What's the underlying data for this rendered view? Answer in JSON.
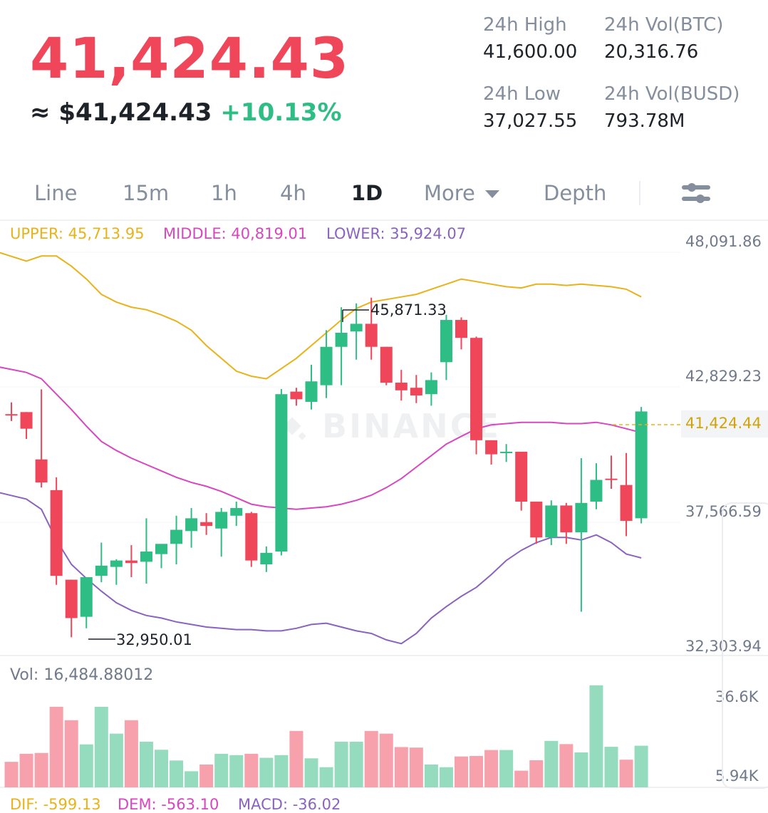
{
  "header": {
    "last_price": "41,424.43",
    "usd_equiv": "≈ $41,424.43",
    "change_pct": "+10.13%"
  },
  "stats": {
    "high_label": "24h High",
    "high_value": "41,600.00",
    "vol_btc_label": "24h Vol(BTC)",
    "vol_btc_value": "20,316.76",
    "low_label": "24h Low",
    "low_value": "37,027.55",
    "vol_busd_label": "24h Vol(BUSD)",
    "vol_busd_value": "793.78M"
  },
  "tabs": {
    "line": "Line",
    "m15": "15m",
    "h1": "1h",
    "h4": "4h",
    "d1": "1D",
    "more": "More",
    "depth": "Depth",
    "active": "1D"
  },
  "indicators": {
    "upper": "UPPER: 45,713.95",
    "middle": "MIDDLE: 40,819.01",
    "lower": "LOWER: 35,924.07"
  },
  "price_axis": [
    "48,091.86",
    "42,829.23",
    "37,566.59",
    "32,303.94"
  ],
  "last_price_tag": "41,424.44",
  "annotations": {
    "high": "45,871.33",
    "low": "32,950.01"
  },
  "watermark": "BINANCE",
  "volume": {
    "label": "Vol: 16,484.88012",
    "axis_top": "36.6K",
    "axis_bottom": "5.94K"
  },
  "macd": {
    "dif": "DIF: -599.13",
    "dea": "DEM: -563.10",
    "macd": "MACD: -36.02"
  },
  "colors": {
    "up": "#2ebd85",
    "down": "#f0465a",
    "upper_band": "#e8b31a",
    "middle_band": "#d846c0",
    "lower_band": "#8a63c0",
    "vol_up": "#95dcbf",
    "vol_down": "#f7a1ad"
  },
  "chart_data": {
    "type": "candlestick",
    "price_range": [
      32303.94,
      48091.86
    ],
    "candles": [
      {
        "o": 41320,
        "h": 41780,
        "c": 41320,
        "l": 41050,
        "dir": "down"
      },
      {
        "o": 41400,
        "h": 41400,
        "c": 40750,
        "l": 40350,
        "dir": "down"
      },
      {
        "o": 39550,
        "h": 42290,
        "c": 38650,
        "l": 38450,
        "dir": "down"
      },
      {
        "o": 38350,
        "h": 38850,
        "c": 35000,
        "l": 34650,
        "dir": "down"
      },
      {
        "o": 34850,
        "h": 34850,
        "c": 33350,
        "l": 32600,
        "dir": "down"
      },
      {
        "o": 33400,
        "h": 34850,
        "c": 34950,
        "l": 32950.01,
        "dir": "up"
      },
      {
        "o": 35000,
        "h": 36300,
        "c": 35400,
        "l": 34750,
        "dir": "up"
      },
      {
        "o": 35350,
        "h": 35650,
        "c": 35600,
        "l": 34650,
        "dir": "up"
      },
      {
        "o": 35600,
        "h": 36200,
        "c": 35500,
        "l": 34950,
        "dir": "down"
      },
      {
        "o": 35550,
        "h": 37250,
        "c": 35950,
        "l": 34700,
        "dir": "up"
      },
      {
        "o": 35850,
        "h": 36200,
        "c": 36250,
        "l": 35300,
        "dir": "up"
      },
      {
        "o": 36250,
        "h": 37350,
        "c": 36800,
        "l": 35450,
        "dir": "up"
      },
      {
        "o": 36750,
        "h": 37650,
        "c": 37250,
        "l": 36100,
        "dir": "up"
      },
      {
        "o": 37100,
        "h": 37450,
        "c": 36950,
        "l": 36600,
        "dir": "down"
      },
      {
        "o": 36850,
        "h": 37650,
        "c": 37500,
        "l": 35750,
        "dir": "up"
      },
      {
        "o": 37350,
        "h": 37900,
        "c": 37650,
        "l": 36950,
        "dir": "up"
      },
      {
        "o": 37450,
        "h": 37500,
        "c": 35600,
        "l": 35350,
        "dir": "down"
      },
      {
        "o": 35450,
        "h": 36150,
        "c": 35900,
        "l": 35150,
        "dir": "up"
      },
      {
        "o": 35950,
        "h": 42300,
        "c": 42100,
        "l": 35800,
        "dir": "up"
      },
      {
        "o": 42200,
        "h": 42350,
        "c": 41900,
        "l": 41650,
        "dir": "down"
      },
      {
        "o": 41800,
        "h": 43250,
        "c": 42600,
        "l": 41500,
        "dir": "up"
      },
      {
        "o": 42450,
        "h": 44600,
        "c": 43950,
        "l": 41950,
        "dir": "up"
      },
      {
        "o": 43950,
        "h": 45500,
        "c": 44500,
        "l": 42450,
        "dir": "up"
      },
      {
        "o": 44550,
        "h": 45650,
        "c": 44850,
        "l": 43450,
        "dir": "up"
      },
      {
        "o": 44850,
        "h": 45871.33,
        "c": 43950,
        "l": 43450,
        "dir": "down"
      },
      {
        "o": 43950,
        "h": 43950,
        "c": 42550,
        "l": 42450,
        "dir": "down"
      },
      {
        "o": 42550,
        "h": 43050,
        "c": 42250,
        "l": 41850,
        "dir": "down"
      },
      {
        "o": 42350,
        "h": 42850,
        "c": 42050,
        "l": 41750,
        "dir": "down"
      },
      {
        "o": 42100,
        "h": 42950,
        "c": 42650,
        "l": 41650,
        "dir": "up"
      },
      {
        "o": 43350,
        "h": 45200,
        "c": 45000,
        "l": 42650,
        "dir": "up"
      },
      {
        "o": 45000,
        "h": 45100,
        "c": 44300,
        "l": 43850,
        "dir": "down"
      },
      {
        "o": 44300,
        "h": 44350,
        "c": 40300,
        "l": 39750,
        "dir": "down"
      },
      {
        "o": 40300,
        "h": 40300,
        "c": 39750,
        "l": 39350,
        "dir": "down"
      },
      {
        "o": 39800,
        "h": 40150,
        "c": 39850,
        "l": 39450,
        "dir": "up"
      },
      {
        "o": 39850,
        "h": 39850,
        "c": 37900,
        "l": 37550,
        "dir": "down"
      },
      {
        "o": 37900,
        "h": 37900,
        "c": 36500,
        "l": 36250,
        "dir": "down"
      },
      {
        "o": 36500,
        "h": 37950,
        "c": 37750,
        "l": 36200,
        "dir": "up"
      },
      {
        "o": 37750,
        "h": 37850,
        "c": 36700,
        "l": 36250,
        "dir": "down"
      },
      {
        "o": 36700,
        "h": 39600,
        "c": 37850,
        "l": 33600,
        "dir": "up"
      },
      {
        "o": 37900,
        "h": 39400,
        "c": 38750,
        "l": 37600,
        "dir": "up"
      },
      {
        "o": 38800,
        "h": 39700,
        "c": 38750,
        "l": 38400,
        "dir": "down"
      },
      {
        "o": 38550,
        "h": 39800,
        "c": 37150,
        "l": 36550,
        "dir": "down"
      },
      {
        "o": 37250,
        "h": 41600,
        "c": 41424.43,
        "l": 37050,
        "dir": "up"
      }
    ],
    "bands": {
      "upper": [
        47700,
        47300,
        47500,
        47500,
        47100,
        46600,
        46000,
        45700,
        45500,
        45400,
        45200,
        44950,
        44600,
        44000,
        43500,
        43000,
        42800,
        42700,
        43100,
        43500,
        44000,
        44500,
        45000,
        45450,
        45700,
        45800,
        45900,
        46000,
        46200,
        46400,
        46600,
        46500,
        46400,
        46300,
        46250,
        46400,
        46400,
        46350,
        46400,
        46350,
        46300,
        46200,
        45900
      ],
      "middle": [
        43200,
        42950,
        42700,
        42100,
        41500,
        40850,
        40250,
        39900,
        39600,
        39350,
        39100,
        38850,
        38650,
        38500,
        38300,
        38050,
        37800,
        37700,
        37650,
        37600,
        37650,
        37700,
        37800,
        37950,
        38150,
        38450,
        38800,
        39250,
        39700,
        40150,
        40450,
        40750,
        40900,
        40950,
        41000,
        41000,
        41000,
        40950,
        40950,
        41000,
        40900,
        40750,
        40600
      ],
      "lower": [
        38300,
        38000,
        37600,
        36400,
        35450,
        34900,
        34400,
        33950,
        33650,
        33450,
        33350,
        33200,
        33100,
        33000,
        32950,
        32900,
        32900,
        32850,
        32850,
        32950,
        33100,
        33150,
        33000,
        32850,
        32750,
        32500,
        32350,
        32750,
        33350,
        33800,
        34200,
        34550,
        35050,
        35600,
        36000,
        36300,
        36500,
        36500,
        36400,
        36600,
        36300,
        35850,
        35700
      ]
    },
    "volume": {
      "range": [
        0,
        39000
      ],
      "values": [
        9500,
        12500,
        12800,
        30000,
        25000,
        16000,
        30000,
        20000,
        25000,
        17000,
        14000,
        10000,
        6000,
        8500,
        12500,
        12000,
        12500,
        11000,
        12000,
        21000,
        10800,
        7500,
        17000,
        17000,
        21000,
        20000,
        15000,
        14800,
        8500,
        7500,
        11500,
        11700,
        13900,
        13900,
        6200,
        10100,
        17300,
        16100,
        13000,
        38000,
        15100,
        10300,
        15500
      ],
      "dir": [
        "down",
        "down",
        "down",
        "down",
        "down",
        "up",
        "up",
        "up",
        "down",
        "up",
        "up",
        "up",
        "up",
        "down",
        "up",
        "up",
        "down",
        "up",
        "up",
        "down",
        "up",
        "up",
        "up",
        "up",
        "down",
        "down",
        "down",
        "down",
        "up",
        "up",
        "down",
        "down",
        "down",
        "up",
        "down",
        "down",
        "up",
        "down",
        "up",
        "up",
        "up",
        "down",
        "up"
      ]
    }
  }
}
